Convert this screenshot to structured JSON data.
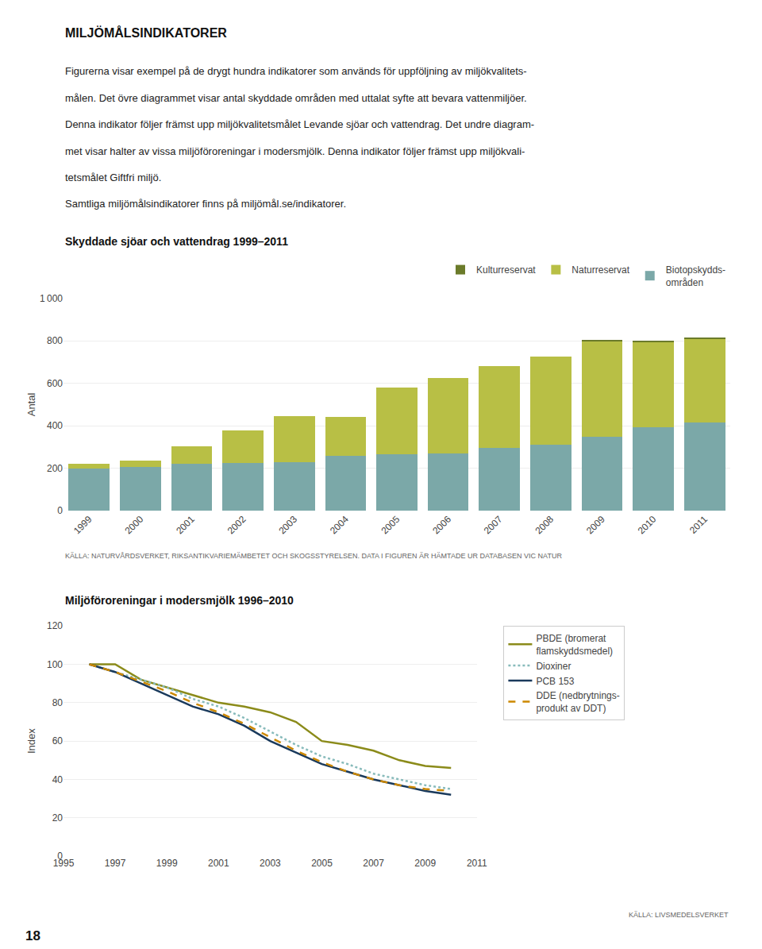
{
  "title": "MILJÖMÅLSINDIKATORER",
  "text": [
    "Figurerna visar exempel på de drygt hundra indikatorer som används för uppföljning av miljökvalitets-",
    "målen. Det övre diagrammet visar antal skyddade områden med uttalat syfte att bevara vattenmiljöer.",
    "Denna indikator följer främst upp miljökvalitetsmålet Levande sjöar och vattendrag. Det undre diagram-",
    "met visar halter av vissa miljöföroreningar i modersmjölk. Denna indikator följer främst upp miljökvali-",
    "tetsmålet Giftfri miljö.",
    "Samtliga miljömålsindikatorer finns på miljömål.se/indikatorer."
  ],
  "annotations": [
    "18"
  ],
  "chart_data": [
    {
      "type": "bar",
      "stacked": true,
      "title": "Skyddade sjöar och vattendrag 1999–2011",
      "ylabel": "Antal",
      "categories": [
        "1999",
        "2000",
        "2001",
        "2002",
        "2003",
        "2004",
        "2005",
        "2006",
        "2007",
        "2008",
        "2009",
        "2010",
        "2011"
      ],
      "series": [
        {
          "name": "Biotopskydds-\nområden",
          "color": "#7ba8a8",
          "values": [
            200,
            208,
            220,
            225,
            230,
            258,
            265,
            270,
            295,
            310,
            350,
            395,
            415
          ]
        },
        {
          "name": "Naturreservat",
          "color": "#b8bf45",
          "values": [
            20,
            28,
            85,
            155,
            215,
            185,
            315,
            355,
            385,
            415,
            450,
            400,
            395
          ]
        },
        {
          "name": "Kulturreservat",
          "color": "#6b7b2a",
          "values": [
            0,
            0,
            0,
            0,
            0,
            0,
            0,
            0,
            0,
            0,
            5,
            5,
            5
          ]
        }
      ],
      "ylim": [
        0,
        1000
      ],
      "yticks": [
        0,
        200,
        400,
        600,
        800,
        {
          "value": 1000,
          "label": "1 000"
        }
      ],
      "grid": true,
      "legend": "upper right",
      "annotations": [
        "KÄLLA: NATURVÅRDSVERKET, RIKSANTIKVARIEMÄMBETET OCH SKOGSSTYRELSEN. DATA I FIGUREN ÄR HÄMTADE UR DATABASEN VIC NATUR"
      ]
    },
    {
      "type": "line",
      "title": "Miljöföroreningar i modersmjölk 1996–2010",
      "ylabel": "Index",
      "x": [
        1996,
        1997,
        1998,
        1999,
        2000,
        2001,
        2002,
        2003,
        2004,
        2005,
        2006,
        2007,
        2008,
        2009,
        2010
      ],
      "series": [
        {
          "name": "PBDE (bromerat\nflamskyddsmedel)",
          "color": "#8b8b1a",
          "line_style": "solid",
          "values": [
            100,
            100,
            92,
            88,
            84,
            80,
            78,
            75,
            70,
            60,
            58,
            55,
            50,
            47,
            46
          ]
        },
        {
          "name": "Dioxiner",
          "color": "#88bbbb",
          "line_style": "dotted",
          "values": [
            100,
            96,
            92,
            88,
            82,
            78,
            72,
            65,
            58,
            52,
            48,
            43,
            40,
            37,
            35
          ]
        },
        {
          "name": "PCB 153",
          "color": "#1a3a5c",
          "line_style": "solid",
          "values": [
            100,
            96,
            90,
            84,
            78,
            74,
            68,
            60,
            54,
            48,
            44,
            40,
            37,
            34,
            32
          ]
        },
        {
          "name": "DDE (nedbrytnings-\nprodukt av DDT)",
          "color": "#cc8800",
          "line_style": "dashed",
          "values": [
            100,
            96,
            91,
            86,
            80,
            75,
            69,
            62,
            55,
            49,
            44,
            40,
            37,
            35,
            34
          ]
        }
      ],
      "xlim": [
        1995,
        2011
      ],
      "xticks": [
        1995,
        1997,
        1999,
        2001,
        2003,
        2005,
        2007,
        2009,
        2011
      ],
      "ylim": [
        0,
        120
      ],
      "yticks": [
        0,
        20,
        40,
        60,
        80,
        100,
        120
      ],
      "grid": true,
      "legend": "right",
      "annotations": [
        "KÄLLA: LIVSMEDELSVERKET"
      ]
    }
  ]
}
